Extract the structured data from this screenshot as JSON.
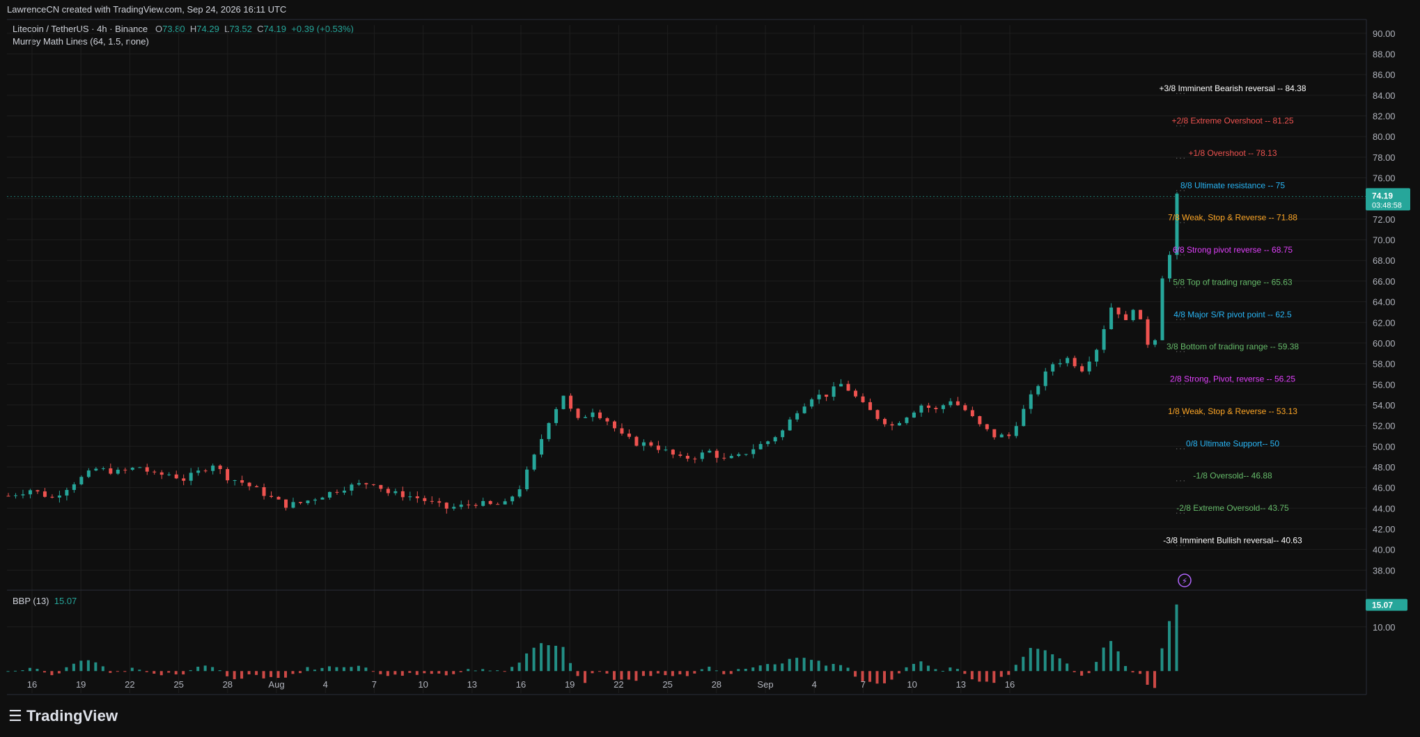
{
  "header": {
    "credit": "LawrenceCN created with TradingView.com, Sep 24, 2026 16:11 UTC"
  },
  "symbol_line": {
    "name": "Litecoin / TetherUS · 4h · Binance",
    "o_label": "O",
    "o": "73.80",
    "h_label": "H",
    "h": "74.29",
    "l_label": "L",
    "l": "73.52",
    "c_label": "C",
    "c": "74.19",
    "change": "+0.39 (+0.53%)"
  },
  "indicator_line": "Murrey Math Lines (64, 1.5, none)",
  "bbp_line": {
    "label": "BBP (13)",
    "value": "15.07"
  },
  "price_badge": {
    "price": "74.19",
    "countdown": "03:48:58"
  },
  "bbp_badge": "15.07",
  "brand": {
    "name": "TradingView"
  },
  "colors": {
    "up": "#26a69a",
    "down": "#ef5350",
    "bg": "#0f0f0f",
    "grid": "#1e1e1e"
  },
  "chart_data": {
    "type": "candlestick",
    "yaxis": {
      "ticks": [
        90.0,
        88.0,
        86.0,
        84.0,
        82.0,
        80.0,
        78.0,
        76.0,
        74.0,
        72.0,
        70.0,
        68.0,
        66.0,
        64.0,
        62.0,
        60.0,
        58.0,
        56.0,
        54.0,
        52.0,
        50.0,
        48.0,
        46.0,
        44.0,
        42.0,
        40.0,
        38.0
      ],
      "range": [
        36.2,
        90.8
      ]
    },
    "xaxis": {
      "labels": [
        "16",
        "19",
        "22",
        "25",
        "28",
        "Aug",
        "4",
        "7",
        "10",
        "13",
        "16",
        "19",
        "22",
        "25",
        "28",
        "Sep",
        "4",
        "7",
        "10",
        "13",
        "16"
      ]
    },
    "price_path": [
      [
        0,
        45.2
      ],
      [
        3,
        45.8
      ],
      [
        6,
        45.0
      ],
      [
        9,
        46.5
      ],
      [
        12,
        47.8
      ],
      [
        15,
        47.5
      ],
      [
        18,
        48.0
      ],
      [
        20,
        47.2
      ],
      [
        22,
        47.3
      ],
      [
        24,
        46.8
      ],
      [
        26,
        47.5
      ],
      [
        28,
        48.3
      ],
      [
        30,
        47.0
      ],
      [
        32,
        46.5
      ],
      [
        34,
        45.8
      ],
      [
        36,
        45.0
      ],
      [
        38,
        44.3
      ],
      [
        40,
        44.5
      ],
      [
        42,
        45.0
      ],
      [
        44,
        45.5
      ],
      [
        46,
        46.0
      ],
      [
        48,
        46.3
      ],
      [
        50,
        46.5
      ],
      [
        52,
        45.5
      ],
      [
        54,
        45.3
      ],
      [
        56,
        45.0
      ],
      [
        58,
        44.5
      ],
      [
        60,
        44.0
      ],
      [
        62,
        44.2
      ],
      [
        64,
        44.5
      ],
      [
        66,
        44.3
      ],
      [
        68,
        44.4
      ],
      [
        70,
        46.0
      ],
      [
        72,
        49.0
      ],
      [
        74,
        52.5
      ],
      [
        76,
        55.0
      ],
      [
        77,
        53.5
      ],
      [
        78,
        52.5
      ],
      [
        80,
        53.5
      ],
      [
        82,
        52.5
      ],
      [
        84,
        51.0
      ],
      [
        86,
        50.3
      ],
      [
        88,
        50.2
      ],
      [
        90,
        49.5
      ],
      [
        92,
        48.8
      ],
      [
        94,
        49.0
      ],
      [
        96,
        49.5
      ],
      [
        98,
        48.7
      ],
      [
        100,
        49.0
      ],
      [
        102,
        49.8
      ],
      [
        104,
        50.5
      ],
      [
        106,
        51.5
      ],
      [
        108,
        53.5
      ],
      [
        110,
        54.8
      ],
      [
        112,
        55.0
      ],
      [
        114,
        56.0
      ],
      [
        115,
        55.5
      ],
      [
        117,
        54.0
      ],
      [
        119,
        52.8
      ],
      [
        121,
        52.0
      ],
      [
        123,
        53.0
      ],
      [
        125,
        54.0
      ],
      [
        127,
        53.5
      ],
      [
        129,
        54.5
      ],
      [
        131,
        53.5
      ],
      [
        133,
        52.0
      ],
      [
        135,
        51.0
      ],
      [
        137,
        51.0
      ],
      [
        139,
        53.5
      ],
      [
        141,
        56.0
      ],
      [
        143,
        58.0
      ],
      [
        145,
        58.5
      ],
      [
        147,
        57.5
      ],
      [
        149,
        59.5
      ],
      [
        150,
        61.5
      ],
      [
        151,
        63.5
      ],
      [
        152,
        63.0
      ],
      [
        153,
        62.0
      ],
      [
        154,
        63.5
      ],
      [
        155,
        62.0
      ],
      [
        156,
        60.0
      ],
      [
        157,
        60.5
      ],
      [
        158,
        66.5
      ],
      [
        159,
        68.5
      ],
      [
        160,
        74.2
      ]
    ],
    "candles_total": 161,
    "last_price": 74.19,
    "murrey_lines": [
      {
        "label": "+3/8 Imminent Bearish reversal -- ",
        "value": 84.38,
        "color": "#ffffff"
      },
      {
        "label": "+2/8 Extreme Overshoot -- ",
        "value": 81.25,
        "color": "#ef5350"
      },
      {
        "label": "+1/8 Overshoot -- ",
        "value": 78.13,
        "color": "#ef5350"
      },
      {
        "label": "8/8 Ultimate resistance -- ",
        "value": 75,
        "color": "#29b6f6"
      },
      {
        "label": "7/8 Weak, Stop & Reverse -- ",
        "value": 71.88,
        "color": "#ffa726"
      },
      {
        "label": "6/8 Strong pivot reverse -- ",
        "value": 68.75,
        "color": "#e040fb"
      },
      {
        "label": "5/8 Top of trading range -- ",
        "value": 65.63,
        "color": "#66bb6a"
      },
      {
        "label": "4/8 Major S/R pivot point -- ",
        "value": 62.5,
        "color": "#29b6f6"
      },
      {
        "label": "3/8 Bottom of trading range -- ",
        "value": 59.38,
        "color": "#66bb6a"
      },
      {
        "label": "2/8 Strong, Pivot, reverse -- ",
        "value": 56.25,
        "color": "#e040fb"
      },
      {
        "label": "1/8 Weak, Stop & Reverse -- ",
        "value": 53.13,
        "color": "#ffa726"
      },
      {
        "label": "0/8 Ultimate Support-- ",
        "value": 50,
        "color": "#29b6f6"
      },
      {
        "label": "-1/8 Oversold-- ",
        "value": 46.88,
        "color": "#66bb6a"
      },
      {
        "label": "-2/8 Extreme Oversold-- ",
        "value": 43.75,
        "color": "#66bb6a"
      },
      {
        "label": "-3/8 Imminent Bullish reversal-- ",
        "value": 40.63,
        "color": "#ffffff"
      }
    ],
    "bbp_panel": {
      "tick": "10.00",
      "last": 15.07,
      "range": [
        -5,
        18
      ]
    }
  }
}
